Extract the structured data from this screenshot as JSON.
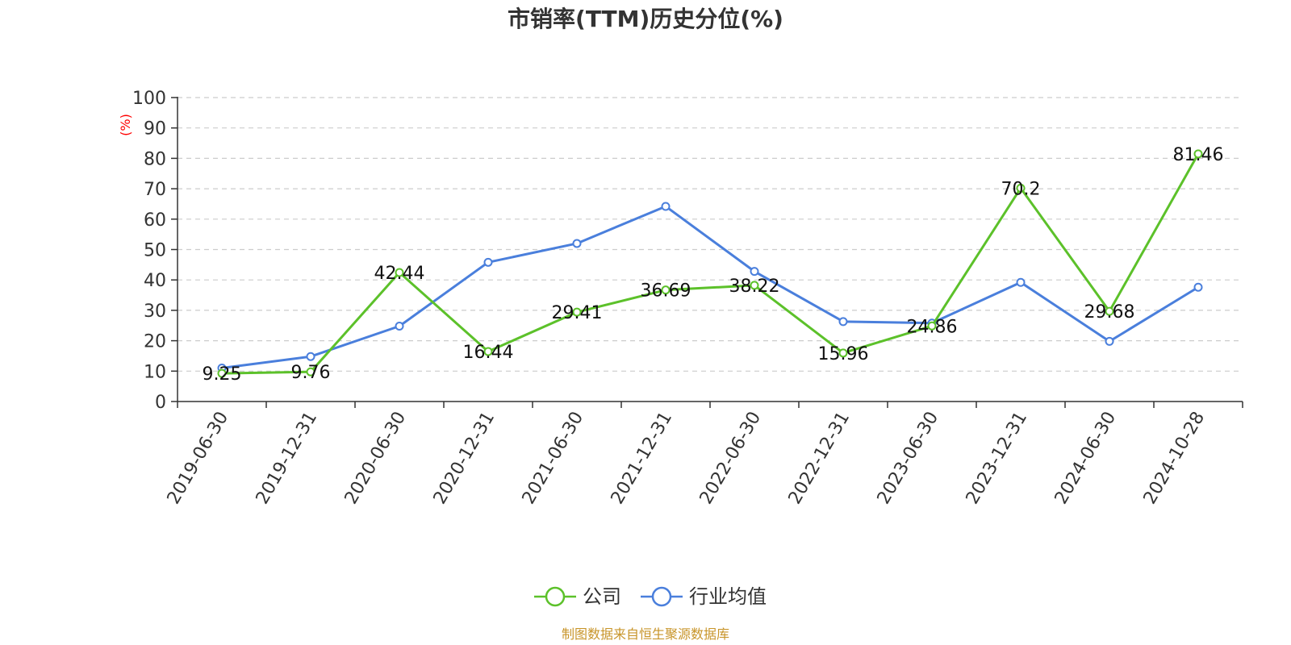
{
  "chart_data": {
    "type": "line",
    "title": "市销率(TTM)历史分位(%)",
    "ylabel": "(%)",
    "ylim": [
      0,
      100
    ],
    "yticks": [
      0,
      10,
      20,
      30,
      40,
      50,
      60,
      70,
      80,
      90,
      100
    ],
    "grid": true,
    "legend_position": "bottom-center",
    "categories": [
      "2019-06-30",
      "2019-12-31",
      "2020-06-30",
      "2020-12-31",
      "2021-06-30",
      "2021-12-31",
      "2022-06-30",
      "2022-12-31",
      "2023-06-30",
      "2023-12-31",
      "2024-06-30",
      "2024-10-28"
    ],
    "series": [
      {
        "name": "公司",
        "color": "#5cc12a",
        "show_labels": true,
        "values": [
          9.25,
          9.76,
          42.44,
          16.44,
          29.41,
          36.69,
          38.22,
          15.96,
          24.86,
          70.2,
          29.68,
          81.46
        ]
      },
      {
        "name": "行业均值",
        "color": "#4a7fdc",
        "show_labels": false,
        "values": [
          11,
          14.8,
          24.8,
          45.8,
          52,
          64.2,
          42.8,
          26.3,
          25.8,
          39.2,
          19.8,
          37.6
        ]
      }
    ]
  },
  "colors": {
    "ylabel": "#ff0000",
    "source": "#c8952a"
  },
  "source": "制图数据来自恒生聚源数据库"
}
